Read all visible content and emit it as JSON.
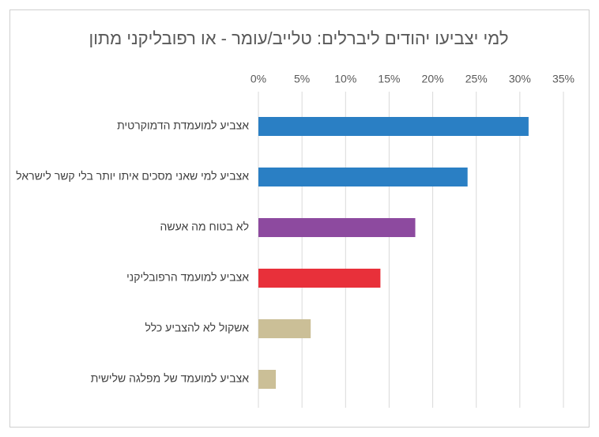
{
  "chart_data": {
    "type": "hbar",
    "title": "למי יצביעו יהודים ליברלים: טלייב/עומר - או רפובליקני מתון",
    "categories": [
      "אצביע למועמדת הדמוקרטית",
      "אצביע למי שאני מסכים איתו יותר בלי קשר לישראל",
      "לא בטוח מה אעשה",
      "אצביע למועמד הרפובליקני",
      "אשקול לא להצביע כלל",
      "אצביע למועמד של מפלגה שלישית"
    ],
    "values": [
      31,
      24,
      18,
      14,
      6,
      2
    ],
    "colors": [
      "#2a7fc4",
      "#2a7fc4",
      "#8d4a9f",
      "#e8303a",
      "#cbbf97",
      "#cbbf97"
    ],
    "xlim": [
      0,
      35
    ],
    "xticks": [
      {
        "value": 0,
        "label": "0%"
      },
      {
        "value": 5,
        "label": "5%"
      },
      {
        "value": 10,
        "label": "10%"
      },
      {
        "value": 15,
        "label": "15%"
      },
      {
        "value": 20,
        "label": "20%"
      },
      {
        "value": 25,
        "label": "25%"
      },
      {
        "value": 30,
        "label": "30%"
      },
      {
        "value": 35,
        "label": "35%"
      }
    ],
    "grid": true
  }
}
